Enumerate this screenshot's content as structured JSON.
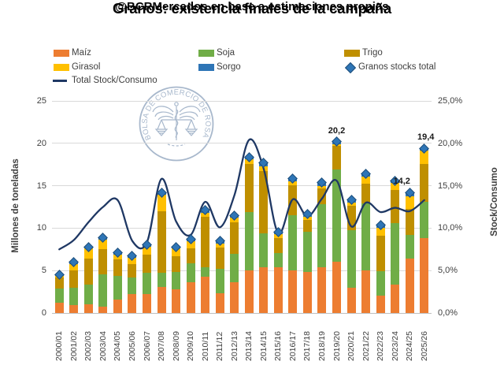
{
  "title": "Granos: existencia finales de la campaña",
  "subtitle": "@BCRMercados en base a estimaciones propias",
  "watermark": {
    "seal_text": "BOLSA DE COMERCIO DE ROSARIO"
  },
  "legend": {
    "items": [
      {
        "label": "Maíz",
        "marker": "rect",
        "color": "#ED7D31"
      },
      {
        "label": "Soja",
        "marker": "rect",
        "color": "#70AD47"
      },
      {
        "label": "Trigo",
        "marker": "rect",
        "color": "#BF8F00"
      },
      {
        "label": "Girasol",
        "marker": "rect",
        "color": "#FFC000"
      },
      {
        "label": "Sorgo",
        "marker": "rect",
        "color": "#2E75B6"
      },
      {
        "label": "Granos stocks total",
        "marker": "diamond",
        "color": "#2E75B6"
      },
      {
        "label": "Total Stock/Consumo",
        "marker": "line",
        "color": "#1F3864"
      }
    ]
  },
  "axes": {
    "left": {
      "title": "Millones de toneladas",
      "tick_values": [
        0,
        5,
        10,
        15,
        20,
        25
      ],
      "tick_labels": [
        "0",
        "5",
        "10",
        "15",
        "20",
        "25"
      ]
    },
    "right": {
      "title": "Stock/Consumo",
      "tick_values": [
        0,
        5,
        10,
        15,
        20,
        25
      ],
      "tick_labels": [
        "0,0%",
        "5,0%",
        "10,0%",
        "15,0%",
        "20,0%",
        "25,0%"
      ]
    }
  },
  "chart_data": {
    "type": "combo: stacked-bar + scatter + smooth-line",
    "title": "Granos: existencia finales de la campaña",
    "ylabel_left": "Millones de toneladas",
    "ylabel_right": "Stock/Consumo",
    "ylim_left": [
      0,
      25
    ],
    "ylim_right_pct": [
      0,
      25
    ],
    "grid": "horizontal",
    "categories": [
      "2000/01",
      "2001/02",
      "2002/03",
      "2003/04",
      "2004/05",
      "2005/06",
      "2006/07",
      "2007/08",
      "2008/09",
      "2009/10",
      "2010/11",
      "2011/12",
      "2012/13",
      "2013/14",
      "2014/15",
      "2015/16",
      "2016/17",
      "2017/18",
      "2018/19",
      "2019/20",
      "2020/21",
      "2021/22",
      "2022/23",
      "2023/24",
      "2024/25",
      "2025/26"
    ],
    "series": [
      {
        "name": "Maíz",
        "type": "bar-stack",
        "color": "#ED7D31",
        "values": [
          1.2,
          0.9,
          1.0,
          0.7,
          1.6,
          2.2,
          2.2,
          3.1,
          2.8,
          3.6,
          4.3,
          2.3,
          3.6,
          5.0,
          5.4,
          5.4,
          5.0,
          4.8,
          5.4,
          6.0,
          3.0,
          5.0,
          2.0,
          3.3,
          6.4,
          8.8
        ]
      },
      {
        "name": "Soja",
        "type": "bar-stack",
        "color": "#70AD47",
        "values": [
          1.7,
          2.1,
          2.3,
          3.9,
          2.8,
          2.0,
          2.5,
          1.6,
          2.0,
          2.3,
          1.1,
          2.9,
          3.4,
          6.9,
          4.0,
          1.7,
          6.5,
          4.8,
          7.4,
          10.9,
          6.8,
          7.9,
          2.9,
          7.3,
          2.8,
          4.3
        ]
      },
      {
        "name": "Trigo",
        "type": "bar-stack",
        "color": "#BF8F00",
        "values": [
          1.3,
          2.0,
          3.1,
          2.9,
          1.9,
          1.6,
          2.2,
          7.3,
          1.9,
          1.7,
          5.9,
          2.5,
          3.7,
          5.7,
          7.3,
          1.7,
          3.6,
          1.4,
          1.9,
          2.8,
          2.8,
          2.3,
          4.2,
          3.9,
          3.1,
          4.5
        ]
      },
      {
        "name": "Girasol",
        "type": "bar-stack",
        "color": "#FFC000",
        "values": [
          0.2,
          0.8,
          1.2,
          1.1,
          0.6,
          0.7,
          0.9,
          1.9,
          0.9,
          0.9,
          0.5,
          0.5,
          0.5,
          0.5,
          0.6,
          0.5,
          0.4,
          0.3,
          0.3,
          0.2,
          0.4,
          0.9,
          0.9,
          0.8,
          1.5,
          1.5
        ]
      },
      {
        "name": "Sorgo",
        "type": "bar-stack",
        "color": "#2E75B6",
        "values": [
          0.1,
          0.2,
          0.2,
          0.3,
          0.2,
          0.2,
          0.2,
          0.3,
          0.2,
          0.2,
          0.3,
          0.3,
          0.3,
          0.3,
          0.4,
          0.2,
          0.3,
          0.4,
          0.4,
          0.3,
          0.3,
          0.3,
          0.4,
          0.3,
          0.4,
          0.3
        ]
      },
      {
        "name": "Granos stocks total",
        "type": "scatter",
        "marker": "diamond",
        "color": "#2E75B6",
        "values": [
          4.5,
          6.0,
          7.8,
          8.9,
          7.1,
          6.7,
          8.0,
          14.2,
          7.8,
          8.7,
          12.1,
          8.5,
          11.5,
          18.4,
          17.7,
          9.5,
          15.8,
          11.7,
          15.4,
          20.2,
          13.3,
          16.4,
          10.4,
          15.6,
          14.2,
          19.4
        ]
      },
      {
        "name": "Total Stock/Consumo",
        "type": "line",
        "axis": "right",
        "color": "#1F3864",
        "values_pct": [
          7.5,
          8.6,
          10.7,
          12.5,
          13.3,
          8.5,
          8.3,
          15.8,
          10.8,
          9.2,
          13.1,
          10.1,
          13.9,
          20.4,
          17.0,
          9.4,
          13.4,
          11.4,
          13.5,
          15.6,
          10.2,
          13.0,
          11.9,
          12.4,
          12.0,
          13.3
        ]
      }
    ],
    "annotations": [
      {
        "category": "2019/20",
        "text": "20,2",
        "dx": 0
      },
      {
        "category": "2024/25",
        "text": "14,2",
        "dx": -10
      },
      {
        "category": "2025/26",
        "text": "19,4",
        "dx": 2
      }
    ]
  }
}
